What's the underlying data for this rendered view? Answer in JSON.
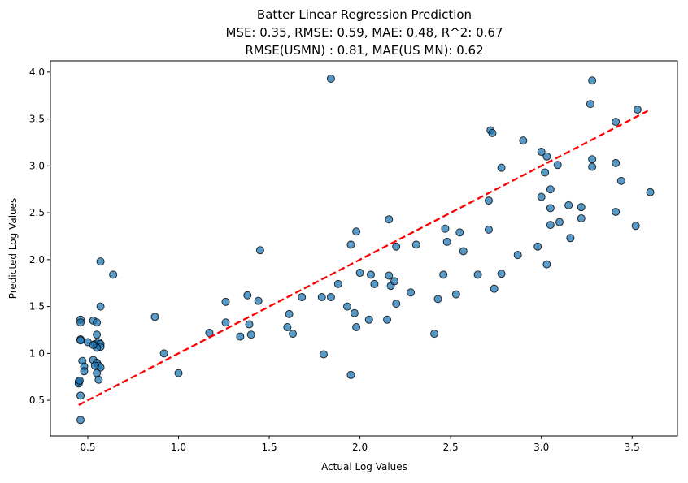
{
  "chart_data": {
    "type": "scatter",
    "title_lines": [
      "Batter Linear Regression Prediction",
      "MSE: 0.35, RMSE: 0.59, MAE: 0.48, R^2: 0.67",
      "RMSE(USMN) : 0.81, MAE(US MN): 0.62"
    ],
    "xlabel": "Actual Log Values",
    "ylabel": "Predicted Log Values",
    "xlim": [
      0.294,
      3.75
    ],
    "ylim": [
      0.12,
      4.12
    ],
    "xticks": [
      {
        "v": 0.5,
        "label": "0.5"
      },
      {
        "v": 1.0,
        "label": "1.0"
      },
      {
        "v": 1.5,
        "label": "1.5"
      },
      {
        "v": 2.0,
        "label": "2.0"
      },
      {
        "v": 2.5,
        "label": "2.5"
      },
      {
        "v": 3.0,
        "label": "3.0"
      },
      {
        "v": 3.5,
        "label": "3.5"
      }
    ],
    "yticks": [
      {
        "v": 0.5,
        "label": "0.5"
      },
      {
        "v": 1.0,
        "label": "1.0"
      },
      {
        "v": 1.5,
        "label": "1.5"
      },
      {
        "v": 2.0,
        "label": "2.0"
      },
      {
        "v": 2.5,
        "label": "2.5"
      },
      {
        "v": 3.0,
        "label": "3.0"
      },
      {
        "v": 3.5,
        "label": "3.5"
      },
      {
        "v": 4.0,
        "label": "4.0"
      }
    ],
    "grid": false,
    "point_color": "#1f77b4",
    "line_color": "#ff0000",
    "reference_line": {
      "x": [
        0.45,
        3.6
      ],
      "y": [
        0.45,
        3.6
      ],
      "style": "dashed"
    },
    "points": [
      [
        0.46,
        0.29
      ],
      [
        0.46,
        0.55
      ],
      [
        0.45,
        0.7
      ],
      [
        0.45,
        0.68
      ],
      [
        0.455,
        0.71
      ],
      [
        0.47,
        0.92
      ],
      [
        0.48,
        0.86
      ],
      [
        0.48,
        0.81
      ],
      [
        0.46,
        1.15
      ],
      [
        0.46,
        1.14
      ],
      [
        0.46,
        1.36
      ],
      [
        0.46,
        1.33
      ],
      [
        0.5,
        1.12
      ],
      [
        0.54,
        1.1
      ],
      [
        0.55,
        1.09
      ],
      [
        0.56,
        1.12
      ],
      [
        0.57,
        1.1
      ],
      [
        0.53,
        1.35
      ],
      [
        0.55,
        1.33
      ],
      [
        0.55,
        1.2
      ],
      [
        0.57,
        1.5
      ],
      [
        0.57,
        1.98
      ],
      [
        0.64,
        1.84
      ],
      [
        0.53,
        0.93
      ],
      [
        0.55,
        0.9
      ],
      [
        0.56,
        0.87
      ],
      [
        0.57,
        0.85
      ],
      [
        0.55,
        0.79
      ],
      [
        0.56,
        0.72
      ],
      [
        0.54,
        0.87
      ],
      [
        0.57,
        1.07
      ],
      [
        0.55,
        1.06
      ],
      [
        0.53,
        1.09
      ],
      [
        0.87,
        1.39
      ],
      [
        0.92,
        1.0
      ],
      [
        1.0,
        0.79
      ],
      [
        1.17,
        1.22
      ],
      [
        1.26,
        1.55
      ],
      [
        1.26,
        1.33
      ],
      [
        1.34,
        1.18
      ],
      [
        1.38,
        1.62
      ],
      [
        1.39,
        1.31
      ],
      [
        1.4,
        1.2
      ],
      [
        1.44,
        1.56
      ],
      [
        1.45,
        2.1
      ],
      [
        1.6,
        1.28
      ],
      [
        1.61,
        1.42
      ],
      [
        1.63,
        1.21
      ],
      [
        1.68,
        1.6
      ],
      [
        1.79,
        1.6
      ],
      [
        1.8,
        0.99
      ],
      [
        1.84,
        1.6
      ],
      [
        1.84,
        3.93
      ],
      [
        1.88,
        1.74
      ],
      [
        1.93,
        1.5
      ],
      [
        1.95,
        2.16
      ],
      [
        1.95,
        0.77
      ],
      [
        1.97,
        1.43
      ],
      [
        1.98,
        2.3
      ],
      [
        1.98,
        1.28
      ],
      [
        2.0,
        1.86
      ],
      [
        2.05,
        1.36
      ],
      [
        2.06,
        1.84
      ],
      [
        2.08,
        1.74
      ],
      [
        2.15,
        1.36
      ],
      [
        2.16,
        1.83
      ],
      [
        2.16,
        2.43
      ],
      [
        2.17,
        1.72
      ],
      [
        2.19,
        1.77
      ],
      [
        2.2,
        2.14
      ],
      [
        2.2,
        1.53
      ],
      [
        2.28,
        1.65
      ],
      [
        2.31,
        2.16
      ],
      [
        2.41,
        1.21
      ],
      [
        2.43,
        1.58
      ],
      [
        2.46,
        1.84
      ],
      [
        2.47,
        2.33
      ],
      [
        2.48,
        2.19
      ],
      [
        2.53,
        1.63
      ],
      [
        2.55,
        2.29
      ],
      [
        2.57,
        2.09
      ],
      [
        2.65,
        1.84
      ],
      [
        2.71,
        2.32
      ],
      [
        2.71,
        2.63
      ],
      [
        2.72,
        3.38
      ],
      [
        2.73,
        3.35
      ],
      [
        2.74,
        1.69
      ],
      [
        2.78,
        2.98
      ],
      [
        2.78,
        1.85
      ],
      [
        2.87,
        2.05
      ],
      [
        2.9,
        3.27
      ],
      [
        2.98,
        2.14
      ],
      [
        3.0,
        3.15
      ],
      [
        3.0,
        2.67
      ],
      [
        3.02,
        2.93
      ],
      [
        3.03,
        1.95
      ],
      [
        3.03,
        3.1
      ],
      [
        3.05,
        2.75
      ],
      [
        3.05,
        2.55
      ],
      [
        3.05,
        2.37
      ],
      [
        3.09,
        3.01
      ],
      [
        3.1,
        2.4
      ],
      [
        3.15,
        2.58
      ],
      [
        3.16,
        2.23
      ],
      [
        3.22,
        2.56
      ],
      [
        3.22,
        2.44
      ],
      [
        3.27,
        3.66
      ],
      [
        3.28,
        3.91
      ],
      [
        3.28,
        2.99
      ],
      [
        3.28,
        3.07
      ],
      [
        3.41,
        2.51
      ],
      [
        3.41,
        3.47
      ],
      [
        3.41,
        3.03
      ],
      [
        3.44,
        2.84
      ],
      [
        3.52,
        2.36
      ],
      [
        3.53,
        3.6
      ],
      [
        3.6,
        2.72
      ]
    ]
  }
}
